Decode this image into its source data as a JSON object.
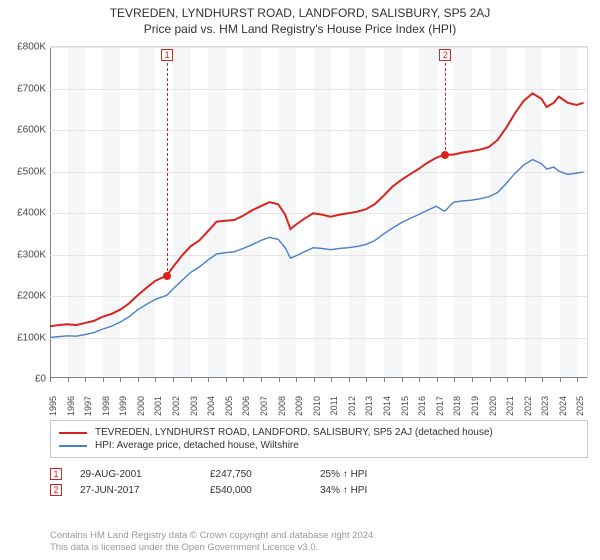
{
  "title": "TEVREDEN, LYNDHURST ROAD, LANDFORD, SALISBURY, SP5 2AJ",
  "subtitle": "Price paid vs. HM Land Registry's House Price Index (HPI)",
  "chart": {
    "type": "line",
    "background_color": "#ffffff",
    "band_color": "#f5f6f8",
    "grid_color": "#e5e5e5",
    "axis_color": "#808080",
    "y": {
      "min": 0,
      "max": 800000,
      "step": 100000,
      "labels": [
        "£0",
        "£100K",
        "£200K",
        "£300K",
        "£400K",
        "£500K",
        "£600K",
        "£700K",
        "£800K"
      ]
    },
    "x": {
      "min": 1995,
      "max": 2025.6,
      "ticks": [
        1995,
        1996,
        1997,
        1998,
        1999,
        2000,
        2001,
        2002,
        2003,
        2004,
        2005,
        2006,
        2007,
        2008,
        2009,
        2010,
        2011,
        2012,
        2013,
        2014,
        2015,
        2016,
        2017,
        2018,
        2019,
        2020,
        2021,
        2022,
        2023,
        2024,
        2025
      ]
    },
    "series": [
      {
        "key": "property",
        "label": "TEVREDEN, LYNDHURST ROAD, LANDFORD, SALISBURY, SP5 2AJ (detached house)",
        "color": "#d8241f",
        "width": 2,
        "points": [
          [
            1995,
            125000
          ],
          [
            1995.5,
            128000
          ],
          [
            1996,
            130000
          ],
          [
            1996.5,
            128000
          ],
          [
            1997,
            133000
          ],
          [
            1997.5,
            138000
          ],
          [
            1998,
            148000
          ],
          [
            1998.5,
            155000
          ],
          [
            1999,
            165000
          ],
          [
            1999.5,
            180000
          ],
          [
            2000,
            200000
          ],
          [
            2000.5,
            218000
          ],
          [
            2001,
            235000
          ],
          [
            2001.66,
            247750
          ],
          [
            2002,
            268000
          ],
          [
            2002.5,
            295000
          ],
          [
            2003,
            318000
          ],
          [
            2003.5,
            332000
          ],
          [
            2004,
            355000
          ],
          [
            2004.5,
            378000
          ],
          [
            2005,
            380000
          ],
          [
            2005.5,
            382000
          ],
          [
            2006,
            392000
          ],
          [
            2006.5,
            405000
          ],
          [
            2007,
            415000
          ],
          [
            2007.5,
            425000
          ],
          [
            2008,
            420000
          ],
          [
            2008.4,
            395000
          ],
          [
            2008.7,
            360000
          ],
          [
            2009,
            370000
          ],
          [
            2009.5,
            385000
          ],
          [
            2010,
            398000
          ],
          [
            2010.5,
            395000
          ],
          [
            2011,
            390000
          ],
          [
            2011.5,
            395000
          ],
          [
            2012,
            398000
          ],
          [
            2012.5,
            402000
          ],
          [
            2013,
            408000
          ],
          [
            2013.5,
            420000
          ],
          [
            2014,
            440000
          ],
          [
            2014.5,
            462000
          ],
          [
            2015,
            478000
          ],
          [
            2015.5,
            492000
          ],
          [
            2016,
            505000
          ],
          [
            2016.5,
            520000
          ],
          [
            2017,
            532000
          ],
          [
            2017.49,
            540000
          ],
          [
            2018,
            540000
          ],
          [
            2018.5,
            545000
          ],
          [
            2019,
            548000
          ],
          [
            2019.5,
            552000
          ],
          [
            2020,
            558000
          ],
          [
            2020.5,
            575000
          ],
          [
            2021,
            605000
          ],
          [
            2021.5,
            640000
          ],
          [
            2022,
            670000
          ],
          [
            2022.5,
            688000
          ],
          [
            2023,
            675000
          ],
          [
            2023.3,
            655000
          ],
          [
            2023.7,
            665000
          ],
          [
            2024,
            680000
          ],
          [
            2024.5,
            665000
          ],
          [
            2025,
            660000
          ],
          [
            2025.4,
            665000
          ]
        ]
      },
      {
        "key": "hpi",
        "label": "HPI: Average price, detached house, Wiltshire",
        "color": "#4a7fc9",
        "width": 1.4,
        "points": [
          [
            1995,
            98000
          ],
          [
            1995.5,
            100000
          ],
          [
            1996,
            102000
          ],
          [
            1996.5,
            101000
          ],
          [
            1997,
            105000
          ],
          [
            1997.5,
            110000
          ],
          [
            1998,
            118000
          ],
          [
            1998.5,
            125000
          ],
          [
            1999,
            135000
          ],
          [
            1999.5,
            148000
          ],
          [
            2000,
            165000
          ],
          [
            2000.5,
            178000
          ],
          [
            2001,
            190000
          ],
          [
            2001.66,
            200000
          ],
          [
            2002,
            215000
          ],
          [
            2002.5,
            235000
          ],
          [
            2003,
            255000
          ],
          [
            2003.5,
            268000
          ],
          [
            2004,
            285000
          ],
          [
            2004.5,
            300000
          ],
          [
            2005,
            303000
          ],
          [
            2005.5,
            305000
          ],
          [
            2006,
            313000
          ],
          [
            2006.5,
            322000
          ],
          [
            2007,
            332000
          ],
          [
            2007.5,
            340000
          ],
          [
            2008,
            335000
          ],
          [
            2008.4,
            315000
          ],
          [
            2008.7,
            290000
          ],
          [
            2009,
            295000
          ],
          [
            2009.5,
            305000
          ],
          [
            2010,
            315000
          ],
          [
            2010.5,
            313000
          ],
          [
            2011,
            310000
          ],
          [
            2011.5,
            313000
          ],
          [
            2012,
            315000
          ],
          [
            2012.5,
            318000
          ],
          [
            2013,
            323000
          ],
          [
            2013.5,
            332000
          ],
          [
            2014,
            348000
          ],
          [
            2014.5,
            362000
          ],
          [
            2015,
            375000
          ],
          [
            2015.5,
            385000
          ],
          [
            2016,
            395000
          ],
          [
            2016.5,
            405000
          ],
          [
            2017,
            415000
          ],
          [
            2017.49,
            403000
          ],
          [
            2018,
            425000
          ],
          [
            2018.5,
            428000
          ],
          [
            2019,
            430000
          ],
          [
            2019.5,
            433000
          ],
          [
            2020,
            438000
          ],
          [
            2020.5,
            448000
          ],
          [
            2021,
            470000
          ],
          [
            2021.5,
            495000
          ],
          [
            2022,
            515000
          ],
          [
            2022.5,
            528000
          ],
          [
            2023,
            518000
          ],
          [
            2023.3,
            505000
          ],
          [
            2023.7,
            510000
          ],
          [
            2024,
            500000
          ],
          [
            2024.5,
            492000
          ],
          [
            2025,
            495000
          ],
          [
            2025.4,
            498000
          ]
        ]
      }
    ],
    "markers": [
      {
        "n": "1",
        "x": 2001.66,
        "y": 247750,
        "color": "#d8241f"
      },
      {
        "n": "2",
        "x": 2017.49,
        "y": 540000,
        "color": "#d8241f"
      }
    ]
  },
  "transactions": [
    {
      "n": "1",
      "date": "29-AUG-2001",
      "price": "£247,750",
      "delta": "25% ↑ HPI",
      "color": "#d8241f"
    },
    {
      "n": "2",
      "date": "27-JUN-2017",
      "price": "£540,000",
      "delta": "34% ↑ HPI",
      "color": "#d8241f"
    }
  ],
  "footnote_l1": "Contains HM Land Registry data © Crown copyright and database right 2024.",
  "footnote_l2": "This data is licensed under the Open Government Licence v3.0."
}
